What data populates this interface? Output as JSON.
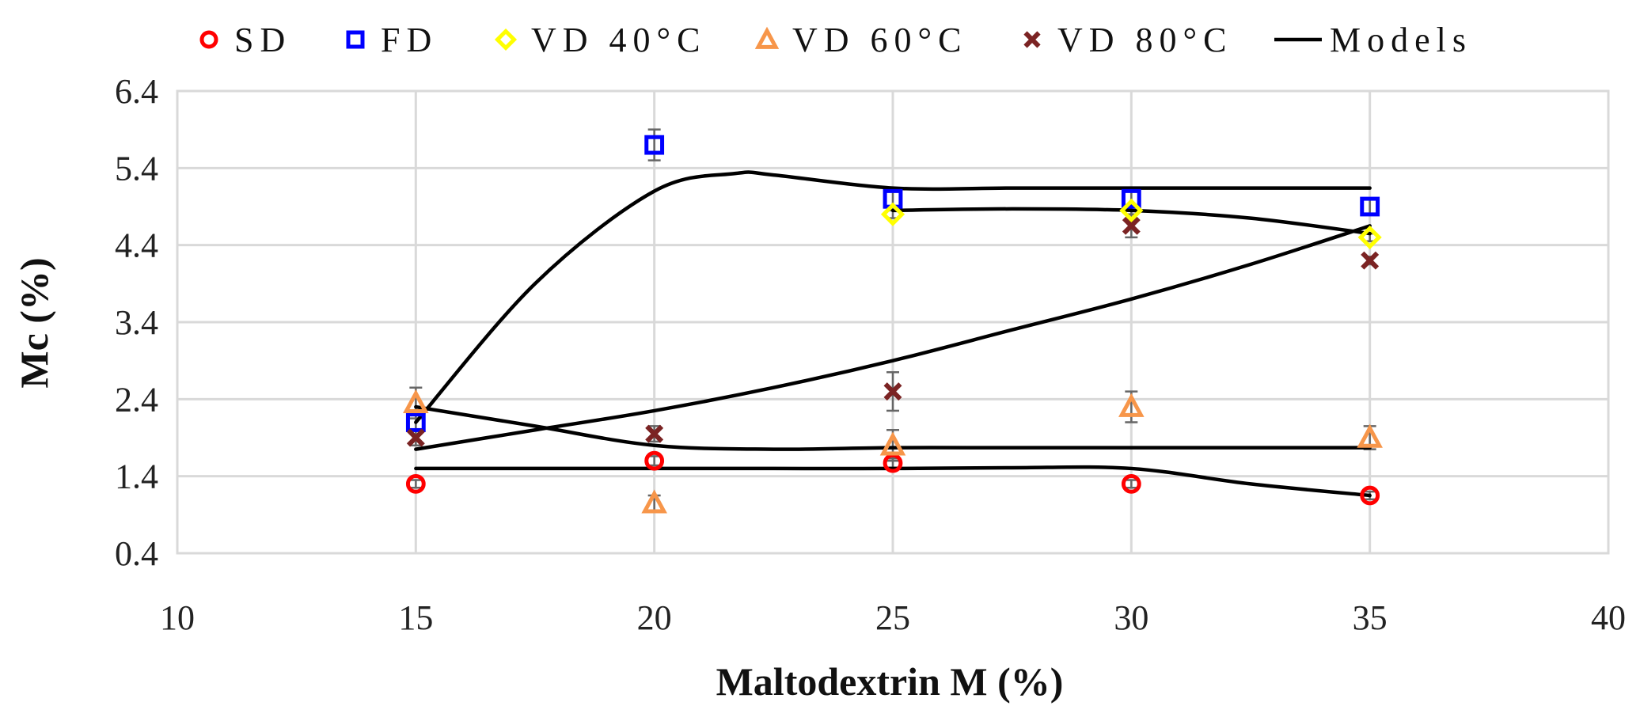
{
  "chart_data": {
    "type": "scatter",
    "xlabel": "Maltodextrin M (%)",
    "ylabel": "Mc (%)",
    "xlim": [
      10,
      40
    ],
    "ylim": [
      0.4,
      6.4
    ],
    "x_ticks": [
      10,
      15,
      20,
      25,
      30,
      35,
      40
    ],
    "y_ticks": [
      "0.4",
      "1.4",
      "2.4",
      "3.4",
      "4.4",
      "5.4",
      "6.4"
    ],
    "grid": true,
    "legend_position": "top",
    "series": [
      {
        "name": "SD",
        "marker": "circle",
        "color": "#ff0000",
        "x": [
          15,
          20,
          25,
          30,
          35
        ],
        "y": [
          1.3,
          1.6,
          1.57,
          1.3,
          1.15
        ],
        "err": [
          0.05,
          0.06,
          0.06,
          0.05,
          0.05
        ]
      },
      {
        "name": "FD",
        "marker": "square",
        "color": "#0000ff",
        "x": [
          15,
          20,
          25,
          30,
          35
        ],
        "y": [
          2.1,
          5.7,
          5.0,
          5.0,
          4.9
        ],
        "err": [
          0.1,
          0.2,
          0.1,
          0.1,
          0.1
        ]
      },
      {
        "name": "VD 40°C",
        "marker": "diamond",
        "color": "#ffff00",
        "x": [
          25,
          30,
          35
        ],
        "y": [
          4.8,
          4.85,
          4.5
        ],
        "err": [
          0.05,
          0.05,
          0.05
        ]
      },
      {
        "name": "VD 60°C",
        "marker": "triangle",
        "color": "#f7964a",
        "x": [
          15,
          20,
          25,
          30,
          35
        ],
        "y": [
          2.35,
          1.05,
          1.8,
          2.3,
          1.9
        ],
        "err": [
          0.2,
          0.1,
          0.2,
          0.2,
          0.15
        ]
      },
      {
        "name": "VD 80°C",
        "marker": "cross",
        "color": "#7b2323",
        "x": [
          15,
          20,
          25,
          30,
          35
        ],
        "y": [
          1.9,
          1.95,
          2.5,
          4.65,
          4.2
        ],
        "err": [
          0.1,
          0.1,
          0.25,
          0.15,
          0.05
        ]
      }
    ],
    "models": {
      "name": "Models",
      "color": "#000000",
      "curves": [
        {
          "x": [
            15,
            17.5,
            20,
            22.5,
            25,
            27.5,
            30,
            32.5,
            35
          ],
          "y": [
            1.5,
            1.5,
            1.5,
            1.5,
            1.5,
            1.51,
            1.5,
            1.3,
            1.15
          ]
        },
        {
          "x": [
            15,
            17.5,
            20,
            22.5,
            25,
            27.5,
            30,
            32.5,
            35
          ],
          "y": [
            2.3,
            2.05,
            1.8,
            1.75,
            1.77,
            1.77,
            1.77,
            1.77,
            1.77
          ]
        },
        {
          "x": [
            15,
            17.5,
            20,
            22.5,
            25,
            27.5,
            30,
            32.5,
            35
          ],
          "y": [
            1.75,
            2.0,
            2.25,
            2.55,
            2.9,
            3.3,
            3.7,
            4.15,
            4.65
          ]
        },
        {
          "x": [
            15,
            17.5,
            20,
            21.7,
            22.5,
            25,
            27.5,
            30,
            32.5,
            35
          ],
          "y": [
            2.1,
            3.9,
            5.1,
            5.33,
            5.31,
            5.14,
            5.14,
            5.14,
            5.14,
            5.14
          ]
        },
        {
          "x": [
            25,
            27.5,
            30,
            32.5,
            35
          ],
          "y": [
            4.85,
            4.87,
            4.85,
            4.75,
            4.55
          ]
        }
      ]
    }
  }
}
